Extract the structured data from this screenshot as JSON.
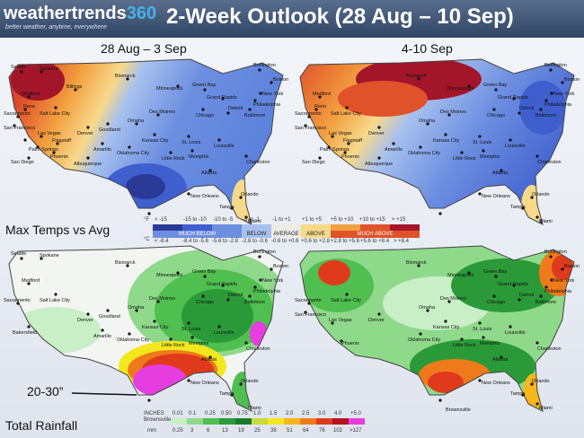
{
  "header": {
    "brand_main": "weathertrends",
    "brand_num": "360",
    "tagline": "better weather, anytime, everywhere",
    "title": "2-Week Outlook (28 Aug – 10 Sep)"
  },
  "periods": {
    "week1": "28 Aug – 3 Sep",
    "week2": "4-10 Sep"
  },
  "sections": {
    "temps": "Max Temps vs Avg",
    "rain": "Total Rainfall"
  },
  "callout": "20-30”",
  "cities": {
    "Burlington": "Burlington",
    "Boston": "Boston",
    "NewYork": "New York",
    "Philadelphia": "Philadelphia",
    "Baltimore": "Baltimore",
    "Minneapolis": "Minneapolis",
    "GreenBay": "Green Bay",
    "GrandRapids": "Grand Rapids",
    "Detroit": "Detroit",
    "Chicago": "Chicago",
    "DesMoines": "Des Moines",
    "Omaha": "Omaha",
    "KansasCity": "Kansas City",
    "StLouis": "St. Louis",
    "Louisville": "Louisville",
    "OklahomaCity": "Oklahoma City",
    "Amarillo": "Amarillo",
    "LittleRock": "Little Rock",
    "Memphis": "Memphis",
    "Charleston": "Charleston",
    "Albuquerque": "Albuquerque",
    "Denver": "Denver",
    "Goodland": "Goodland",
    "Bismarck": "Bismarck",
    "Billings": "Billings",
    "SaltLakeCity": "Salt Lake City",
    "Reno": "Reno",
    "Sacramento": "Sacramento",
    "SanFrancisco": "San Francisco",
    "LasVegas": "Las Vegas",
    "Flagstaff": "Flagstaff",
    "PalmSprings": "Palm Springs",
    "Phoenix": "Phoenix",
    "SanDiego": "San Diego",
    "Medford": "Medford",
    "Spokane": "Spokane",
    "Seattle": "Seattle",
    "Atlanta": "Atlanta",
    "NewOrleans": "New Orleans",
    "Orlando": "Orlando",
    "Tampa": "Tampa",
    "Miami": "Miami",
    "Brownsville": "Brownsville",
    "Bakersfield": "Bakersfield"
  },
  "temp_legend": {
    "f_unit": "°F",
    "c_unit": "°C",
    "f_labels": [
      "< -15",
      "-15 to -10",
      "-10 to -5",
      "-5 to -1",
      "-1 to +1",
      "+1 to +5",
      "+5 to +10",
      "+10 to +15",
      "> +15"
    ],
    "c_labels": [
      "< -8.4",
      "-8.4 to -5.6",
      "-5.6 to -2.8",
      "-2.8 to -0.6",
      "-0.6 to +0.6",
      "+0.6 to +2.8",
      "+2.8 to +5.6",
      "+5.6 to +8.4",
      "> +8.4"
    ],
    "bands": [
      "MUCH BELOW",
      "BELOW",
      "AVERAGE",
      "ABOVE",
      "MUCH ABOVE"
    ],
    "colors": [
      "#2b3a97",
      "#3f5fce",
      "#6d8fe0",
      "#a6c0ee",
      "#ecebe5",
      "#f7d98a",
      "#f2a140",
      "#e0522a",
      "#a3162a"
    ]
  },
  "rain_legend": {
    "inch_unit": "INCHES",
    "mm_unit": "mm",
    "ref": "Brownsville",
    "inches": [
      "0.01",
      "0.1",
      "0.25",
      "0.50",
      "0.75",
      "1.0",
      "1.5",
      "2.0",
      "2.5",
      "3.0",
      "4.0",
      "+5.0"
    ],
    "mm": [
      "0.25",
      "3",
      "6",
      "13",
      "19",
      "25",
      "38",
      "51",
      "64",
      "76",
      "102",
      ">127"
    ],
    "colors": [
      "#c8efc5",
      "#8fd98a",
      "#4fbf4f",
      "#2a9a38",
      "#1b7a2c",
      "#c7dc3a",
      "#f3e81d",
      "#f6b71c",
      "#ef7a1a",
      "#df3a1c",
      "#b5121e",
      "#e63de0"
    ]
  }
}
